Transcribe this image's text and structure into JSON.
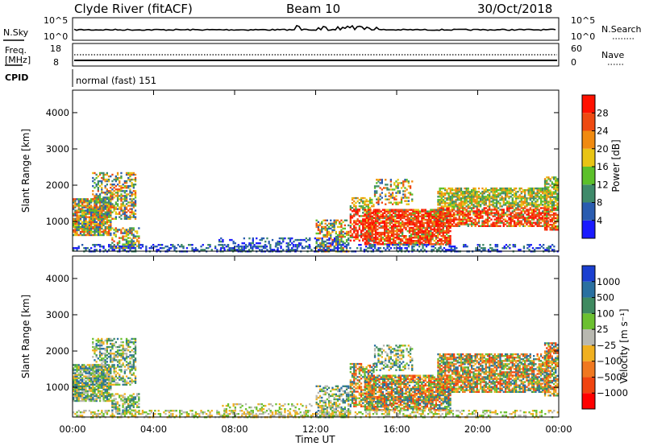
{
  "header": {
    "radar": "Clyde River (fitACF)",
    "beam": "Beam 10",
    "date": "30/Oct/2018"
  },
  "noise_panel": {
    "left_label": "N.Sky",
    "right_label": "N.Search",
    "left_ticks": [
      "10^5",
      "10^0"
    ],
    "right_ticks": [
      "10^5",
      "10^0"
    ]
  },
  "freq_panel": {
    "left_label_line1": "Freq.",
    "left_label_line2": "[MHz]",
    "right_label": "Nave",
    "left_ticks": [
      "18",
      "8"
    ],
    "right_ticks": [
      "60",
      "0"
    ]
  },
  "cpid": {
    "label": "CPID",
    "value": "normal (fast) 151"
  },
  "chart_data": [
    {
      "type": "heatmap",
      "parameter": "Power",
      "ylabel": "Slant Range [km]",
      "ylim": [
        180,
        4620
      ],
      "yticks": [
        "1000",
        "2000",
        "3000",
        "4000"
      ],
      "colorbar_label": "Power [dB]",
      "colorbar_ticks": [
        "4",
        "8",
        "12",
        "16",
        "20",
        "24",
        "28"
      ],
      "colors": [
        "#1a1aff",
        "#2a5cb0",
        "#3f8a6a",
        "#5cc02a",
        "#e8c414",
        "#f08a10",
        "#ee4a12",
        "#ff1100"
      ]
    },
    {
      "type": "heatmap",
      "parameter": "Velocity",
      "ylabel": "Slant Range [km]",
      "ylim": [
        180,
        4620
      ],
      "yticks": [
        "1000",
        "2000",
        "3000",
        "4000"
      ],
      "colorbar_label": "Velocity [m s⁻¹]",
      "colorbar_ticks": [
        "1000",
        "500",
        "100",
        "25",
        "−25",
        "−100",
        "−500",
        "−1000"
      ],
      "colors": [
        "#1a3fd0",
        "#2a70a0",
        "#3f8a60",
        "#6cc030",
        "#b8b8b0",
        "#f0b020",
        "#f07820",
        "#f04410",
        "#ff0000"
      ]
    }
  ],
  "xaxis": {
    "label": "Time UT",
    "ticks": [
      "00:00",
      "04:00",
      "08:00",
      "12:00",
      "16:00",
      "20:00",
      "00:00"
    ]
  }
}
